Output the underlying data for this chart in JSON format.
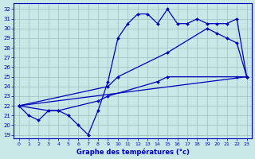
{
  "title": "Graphe des températures (°c)",
  "bg_color": "#c8e8e8",
  "line_color": "#0000bb",
  "grid_color": "#9bbfbf",
  "ytick_vals": [
    19,
    20,
    21,
    22,
    23,
    24,
    25,
    26,
    27,
    28,
    29,
    30,
    31,
    32
  ],
  "xtick_vals": [
    0,
    1,
    2,
    3,
    4,
    5,
    6,
    7,
    8,
    9,
    10,
    11,
    12,
    13,
    14,
    15,
    16,
    17,
    18,
    19,
    20,
    21,
    22,
    23
  ],
  "xlim": [
    -0.5,
    23.5
  ],
  "ylim": [
    18.6,
    32.6
  ],
  "curve1_x": [
    0,
    1,
    2,
    3,
    4,
    5,
    6,
    7,
    8,
    9,
    10,
    11,
    12,
    13,
    14,
    15,
    16,
    17,
    18,
    19,
    20,
    21,
    22,
    23
  ],
  "curve1_y": [
    22.0,
    21.0,
    20.5,
    21.5,
    21.5,
    21.0,
    20.0,
    19.0,
    21.5,
    24.5,
    29.0,
    30.5,
    31.5,
    31.5,
    30.5,
    32.0,
    30.5,
    30.5,
    31.0,
    30.5,
    30.5,
    30.5,
    31.0,
    25.0
  ],
  "curve2_x": [
    0,
    9,
    10,
    15,
    19,
    20,
    21,
    22,
    23
  ],
  "curve2_y": [
    22.0,
    24.0,
    25.0,
    27.5,
    30.0,
    29.5,
    29.0,
    28.5,
    25.0
  ],
  "curve3_x": [
    0,
    3,
    4,
    8,
    9,
    14,
    15,
    22,
    23
  ],
  "curve3_y": [
    22.0,
    21.5,
    21.5,
    22.5,
    23.0,
    24.5,
    25.0,
    25.0,
    25.0
  ],
  "curve4_x": [
    0,
    23
  ],
  "curve4_y": [
    22.0,
    25.0
  ]
}
